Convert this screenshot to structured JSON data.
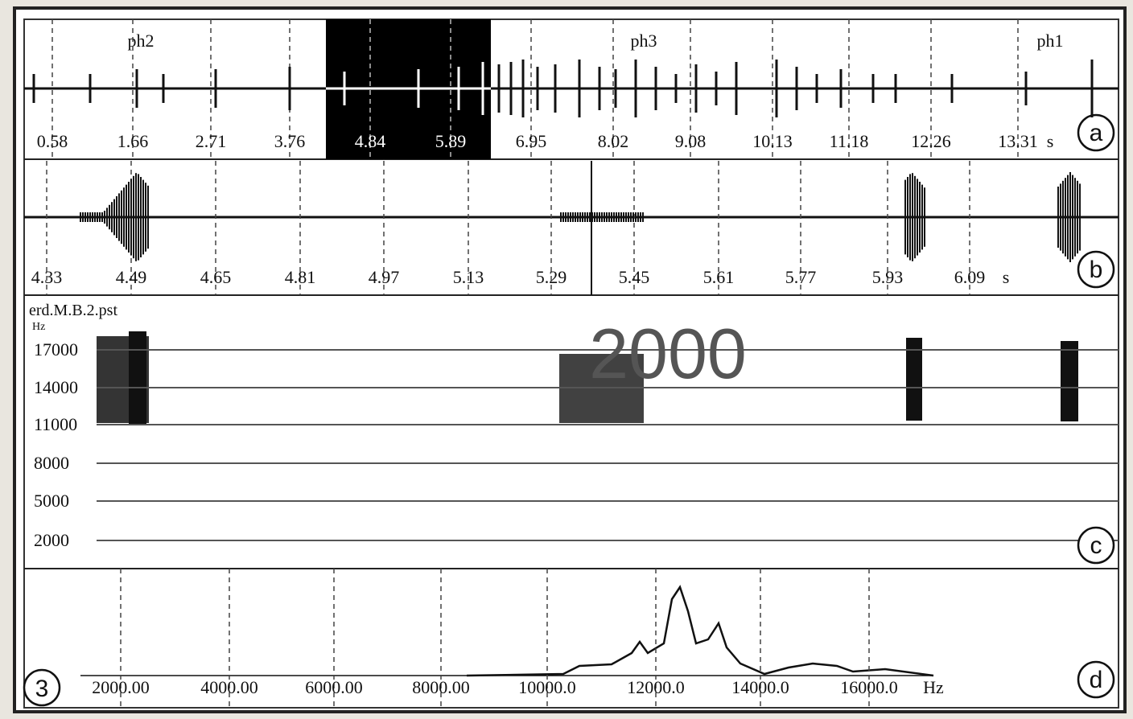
{
  "overlay_text": "2000",
  "panels": [
    {
      "letter": "a",
      "phase_labels": [
        "ph2",
        "ph3",
        "ph1"
      ],
      "ticks": [
        "0.58",
        "1.66",
        "2.71",
        "3.76",
        "4.84",
        "5.89",
        "6.95",
        "8.02",
        "9.08",
        "10.13",
        "11.18",
        "12.26",
        "13.31"
      ],
      "unit": "s"
    },
    {
      "letter": "b",
      "ticks": [
        "4.33",
        "4.49",
        "4.65",
        "4.81",
        "4.97",
        "5.13",
        "5.29",
        "5.45",
        "5.61",
        "5.77",
        "5.93",
        "6.09"
      ],
      "unit": "s"
    },
    {
      "letter": "c",
      "file": "erd.M.B.2.pst",
      "unit": "Hz",
      "ticks": [
        "17000",
        "14000",
        "11000",
        "8000",
        "5000",
        "2000"
      ]
    },
    {
      "letter": "d",
      "figure_number": "3",
      "ticks": [
        "2000.00",
        "4000.00",
        "6000.00",
        "8000.00",
        "10000.0",
        "12000.0",
        "14000.0",
        "16000.0"
      ],
      "unit": "Hz"
    }
  ]
}
